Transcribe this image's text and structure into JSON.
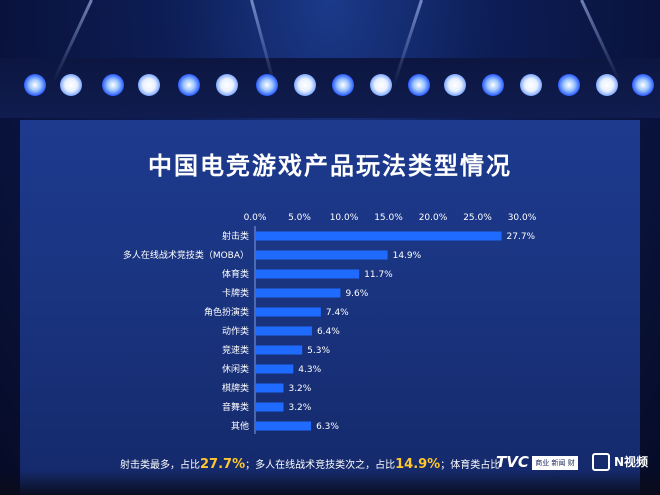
{
  "chart_data": {
    "type": "bar",
    "orientation": "horizontal",
    "title": "中国电竞游戏产品玩法类型情况",
    "categories": [
      "射击类",
      "多人在线战术竞技类（MOBA）",
      "体育类",
      "卡牌类",
      "角色扮演类",
      "动作类",
      "竞速类",
      "休闲类",
      "棋牌类",
      "音舞类",
      "其他"
    ],
    "values": [
      27.7,
      14.9,
      11.7,
      9.6,
      7.4,
      6.4,
      5.3,
      4.3,
      3.2,
      3.2,
      6.3
    ],
    "value_labels": [
      "27.7%",
      "14.9%",
      "11.7%",
      "9.6%",
      "7.4%",
      "6.4%",
      "5.3%",
      "4.3%",
      "3.2%",
      "3.2%",
      "6.3%"
    ],
    "x_ticks": [
      "0.0%",
      "5.0%",
      "10.0%",
      "15.0%",
      "20.0%",
      "25.0%",
      "30.0%"
    ],
    "xlim": [
      0,
      30
    ],
    "axis_position": "top",
    "grid": false,
    "bar_color": "#1f6bff"
  },
  "footer": {
    "part1": "射击类最多，占比",
    "pct1": "27.7%",
    "part2": "；多人在线战术竞技类次之，占比",
    "pct2": "14.9%",
    "part3": "；体育类占比"
  },
  "logos": {
    "logo1": "TVC",
    "logo1_sub": "商业 新闻 财经",
    "logo2": "N视频"
  }
}
